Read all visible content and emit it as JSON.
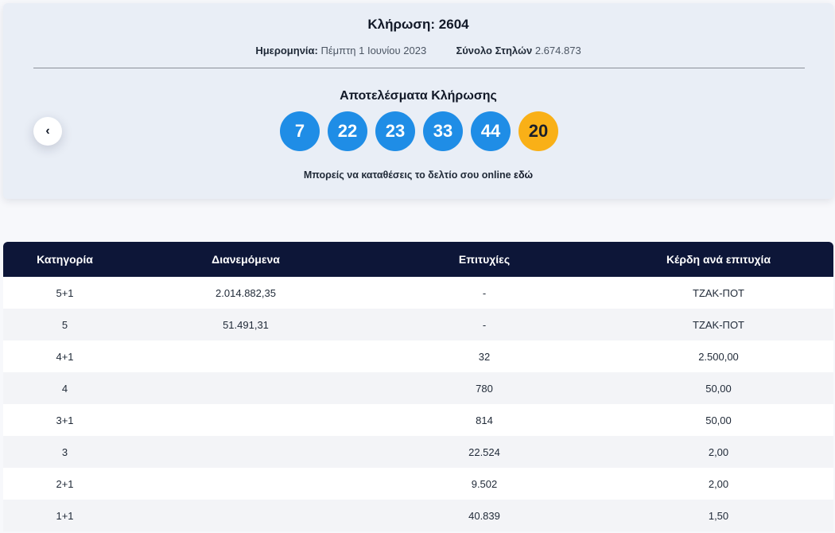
{
  "draw": {
    "title": "Κλήρωση: 2604",
    "date_label": "Ημερομηνία:",
    "date_value": "Πέμπτη 1 Ιουνίου 2023",
    "total_label": "Σύνολο Στηλών",
    "total_value": "2.674.873",
    "results_title": "Αποτελέσματα Κλήρωσης",
    "numbers": [
      "7",
      "22",
      "23",
      "33",
      "44"
    ],
    "joker": "20",
    "online_text": "Μπορείς να καταθέσεις το δελτίο σου online",
    "online_link": "εδώ",
    "prev_icon": "‹"
  },
  "colors": {
    "ball": "#1f8de6",
    "joker_ball": "#f9b017",
    "table_header": "#0d1638"
  },
  "table": {
    "headers": [
      "Κατηγορία",
      "Διανεμόμενα",
      "Επιτυχίες",
      "Κέρδη ανά επιτυχία"
    ],
    "rows": [
      [
        "5+1",
        "2.014.882,35",
        "-",
        "ΤΖΑΚ-ΠΟΤ"
      ],
      [
        "5",
        "51.491,31",
        "-",
        "ΤΖΑΚ-ΠΟΤ"
      ],
      [
        "4+1",
        "",
        "32",
        "2.500,00"
      ],
      [
        "4",
        "",
        "780",
        "50,00"
      ],
      [
        "3+1",
        "",
        "814",
        "50,00"
      ],
      [
        "3",
        "",
        "22.524",
        "2,00"
      ],
      [
        "2+1",
        "",
        "9.502",
        "2,00"
      ],
      [
        "1+1",
        "",
        "40.839",
        "1,50"
      ]
    ]
  }
}
